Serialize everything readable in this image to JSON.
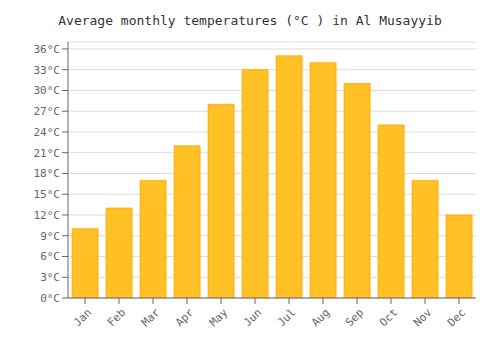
{
  "chart_data": {
    "type": "bar",
    "title": "Average monthly temperatures (°C ) in Al Musayyib",
    "categories": [
      "Jan",
      "Feb",
      "Mar",
      "Apr",
      "May",
      "Jun",
      "Jul",
      "Aug",
      "Sep",
      "Oct",
      "Nov",
      "Dec"
    ],
    "values": [
      10,
      13,
      17,
      22,
      28,
      33,
      35,
      34,
      31,
      25,
      17,
      12
    ],
    "color": "#FFC125",
    "ylim": [
      0,
      37
    ],
    "yticks": [
      {
        "value": 0,
        "label": "0°C"
      },
      {
        "value": 3,
        "label": "3°C"
      },
      {
        "value": 6,
        "label": "6°C"
      },
      {
        "value": 9,
        "label": "9°C"
      },
      {
        "value": 12,
        "label": "12°C"
      },
      {
        "value": 15,
        "label": "15°C"
      },
      {
        "value": 18,
        "label": "18°C"
      },
      {
        "value": 21,
        "label": "21°C"
      },
      {
        "value": 24,
        "label": "24°C"
      },
      {
        "value": 27,
        "label": "27°C"
      },
      {
        "value": 30,
        "label": "30°C"
      },
      {
        "value": 33,
        "label": "33°C"
      },
      {
        "value": 36,
        "label": "36°C"
      }
    ],
    "grid": true
  }
}
